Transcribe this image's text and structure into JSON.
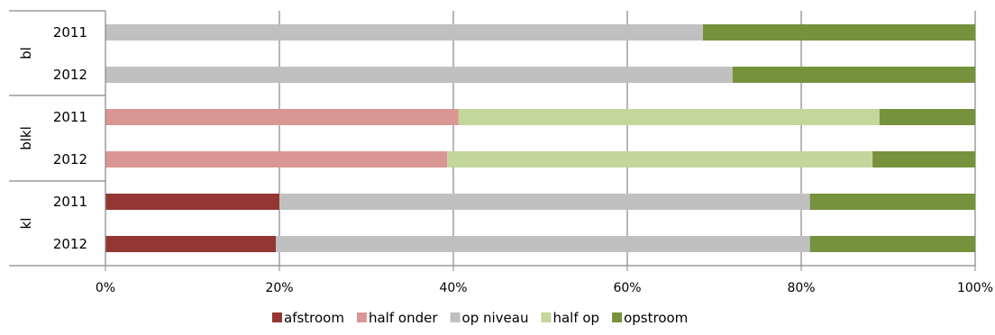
{
  "chart_data": {
    "type": "bar",
    "orientation": "horizontal",
    "stacked": "percent",
    "groups": [
      {
        "label": "bl",
        "rows": [
          {
            "label": "2011",
            "values": [
              0,
              0,
              68.7,
              0,
              31.3
            ]
          },
          {
            "label": "2012",
            "values": [
              0,
              0,
              72.1,
              0,
              27.9
            ]
          }
        ]
      },
      {
        "label": "blkl",
        "rows": [
          {
            "label": "2011",
            "values": [
              0,
              40.6,
              0,
              48.4,
              11.0
            ]
          },
          {
            "label": "2012",
            "values": [
              0,
              39.3,
              0,
              48.9,
              11.8
            ]
          }
        ]
      },
      {
        "label": "kl",
        "rows": [
          {
            "label": "2011",
            "values": [
              20.0,
              0,
              61.0,
              0,
              19.0
            ]
          },
          {
            "label": "2012",
            "values": [
              19.6,
              0,
              61.4,
              0,
              19.0
            ]
          }
        ]
      }
    ],
    "series": [
      {
        "name": "afstroom",
        "color": "#943634"
      },
      {
        "name": "half onder",
        "color": "#d99694"
      },
      {
        "name": "op niveau",
        "color": "#c0c0c0"
      },
      {
        "name": "half op",
        "color": "#c3d69b"
      },
      {
        "name": "opstroom",
        "color": "#76923c"
      }
    ],
    "xlim": [
      0,
      100
    ],
    "x_ticks": [
      "0%",
      "20%",
      "40%",
      "60%",
      "80%",
      "100%"
    ],
    "grid": true,
    "legend_position": "bottom"
  }
}
